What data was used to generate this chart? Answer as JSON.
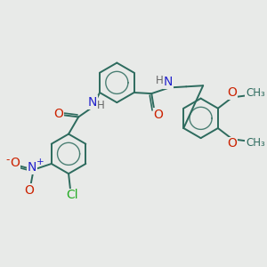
{
  "bg_color": "#e8eae8",
  "bond_color": "#2d6b5e",
  "bond_width": 1.4,
  "atom_colors": {
    "N": "#2222cc",
    "O": "#cc2200",
    "Cl": "#22aa22",
    "H": "#666666",
    "C": "#2d6b5e"
  },
  "font_size": 8.5,
  "figsize": [
    3.0,
    3.0
  ],
  "dpi": 100
}
